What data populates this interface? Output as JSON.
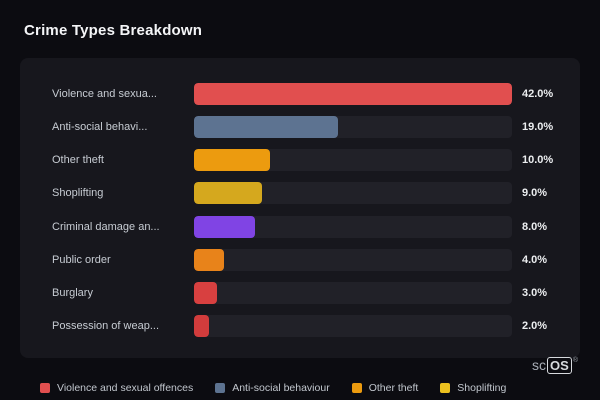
{
  "title": "Crime Types Breakdown",
  "chart_data": {
    "type": "bar",
    "orientation": "horizontal",
    "title": "Crime Types Breakdown",
    "xlabel": "",
    "ylabel": "",
    "max_value": 42.0,
    "categories": [
      "Violence and sexua...",
      "Anti-social behavi...",
      "Other theft",
      "Shoplifting",
      "Criminal damage an...",
      "Public order",
      "Burglary",
      "Possession of weap..."
    ],
    "values": [
      42.0,
      19.0,
      10.0,
      9.0,
      8.0,
      4.0,
      3.0,
      2.0
    ],
    "value_labels": [
      "42.0%",
      "19.0%",
      "10.0%",
      "9.0%",
      "8.0%",
      "4.0%",
      "3.0%",
      "2.0%"
    ],
    "bar_colors": [
      "#e14f4f",
      "#5d7391",
      "#ec9b0f",
      "#d5a81e",
      "#8044e4",
      "#e8831a",
      "#d84040",
      "#d23c3c"
    ],
    "track_color": "#212128",
    "legend_position": "bottom"
  },
  "legend": {
    "items": [
      {
        "label": "Violence and sexual offences",
        "color": "#e14f4f"
      },
      {
        "label": "Anti-social behaviour",
        "color": "#5d7391"
      },
      {
        "label": "Other theft",
        "color": "#ec9b0f"
      },
      {
        "label": "Shoplifting",
        "color": "#ecc11f"
      }
    ]
  },
  "watermark": {
    "prefix": "sc",
    "boxed": "OS",
    "reg": "®"
  }
}
